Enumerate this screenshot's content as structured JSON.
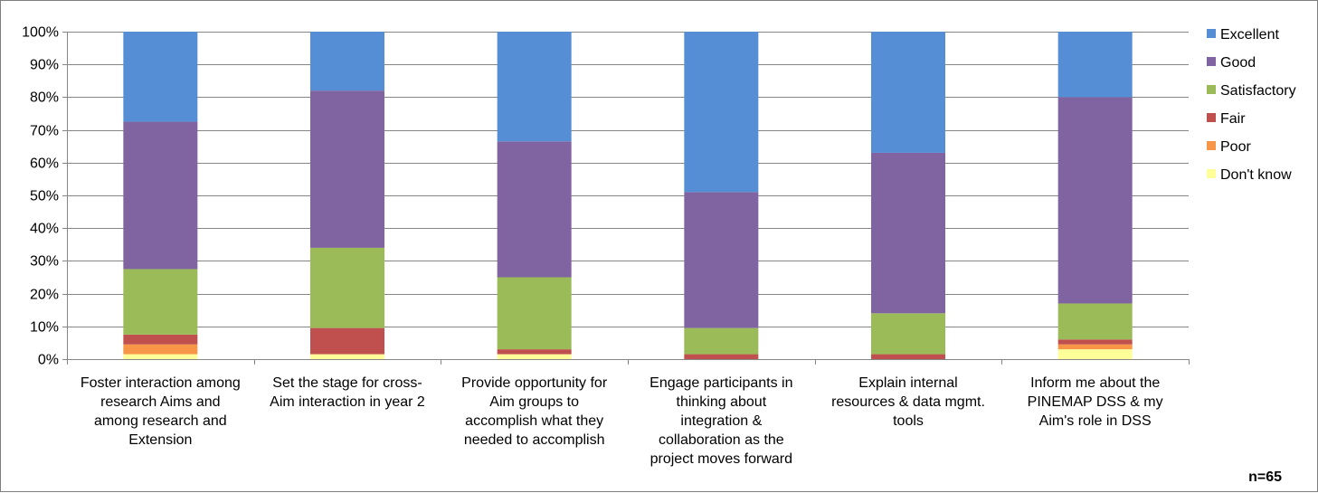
{
  "chart_data": {
    "type": "bar",
    "stacked": true,
    "percent_stacked": true,
    "title": "",
    "xlabel": "",
    "ylabel": "",
    "ylim": [
      0,
      100
    ],
    "yticks": [
      "0%",
      "10%",
      "20%",
      "30%",
      "40%",
      "50%",
      "60%",
      "70%",
      "80%",
      "90%",
      "100%"
    ],
    "categories": [
      [
        "Foster interaction among",
        "research Aims and",
        "among research and",
        "Extension"
      ],
      [
        "Set the stage for cross-",
        "Aim interaction in year 2"
      ],
      [
        "Provide opportunity for",
        "Aim groups to",
        "accomplish what they",
        "needed to accomplish"
      ],
      [
        "Engage participants in",
        "thinking about",
        "integration &",
        "collaboration as the",
        "project moves forward"
      ],
      [
        "Explain internal",
        "resources & data mgmt.",
        "tools"
      ],
      [
        "Inform me about the",
        "PINEMAP DSS & my",
        "Aim's role in DSS"
      ]
    ],
    "series": [
      {
        "name": "Don't know",
        "color": "#FFFF99",
        "values": [
          1.5,
          1.5,
          1.5,
          0,
          0,
          3
        ]
      },
      {
        "name": "Poor",
        "color": "#F79646",
        "values": [
          3,
          0,
          0,
          0,
          0,
          1.5
        ]
      },
      {
        "name": "Fair",
        "color": "#C0504D",
        "values": [
          3,
          8,
          1.5,
          1.5,
          1.5,
          1.5
        ]
      },
      {
        "name": "Satisfactory",
        "color": "#9BBB59",
        "values": [
          20,
          24.5,
          22,
          8,
          12.5,
          11
        ]
      },
      {
        "name": "Good",
        "color": "#8064A2",
        "values": [
          45,
          48,
          41.5,
          41.5,
          49,
          63
        ]
      },
      {
        "name": "Excellent",
        "color": "#558ED5",
        "values": [
          27.5,
          18,
          33.5,
          49,
          37,
          20
        ]
      }
    ],
    "legend_position": "right",
    "grid": true,
    "annotation": "n=65"
  }
}
